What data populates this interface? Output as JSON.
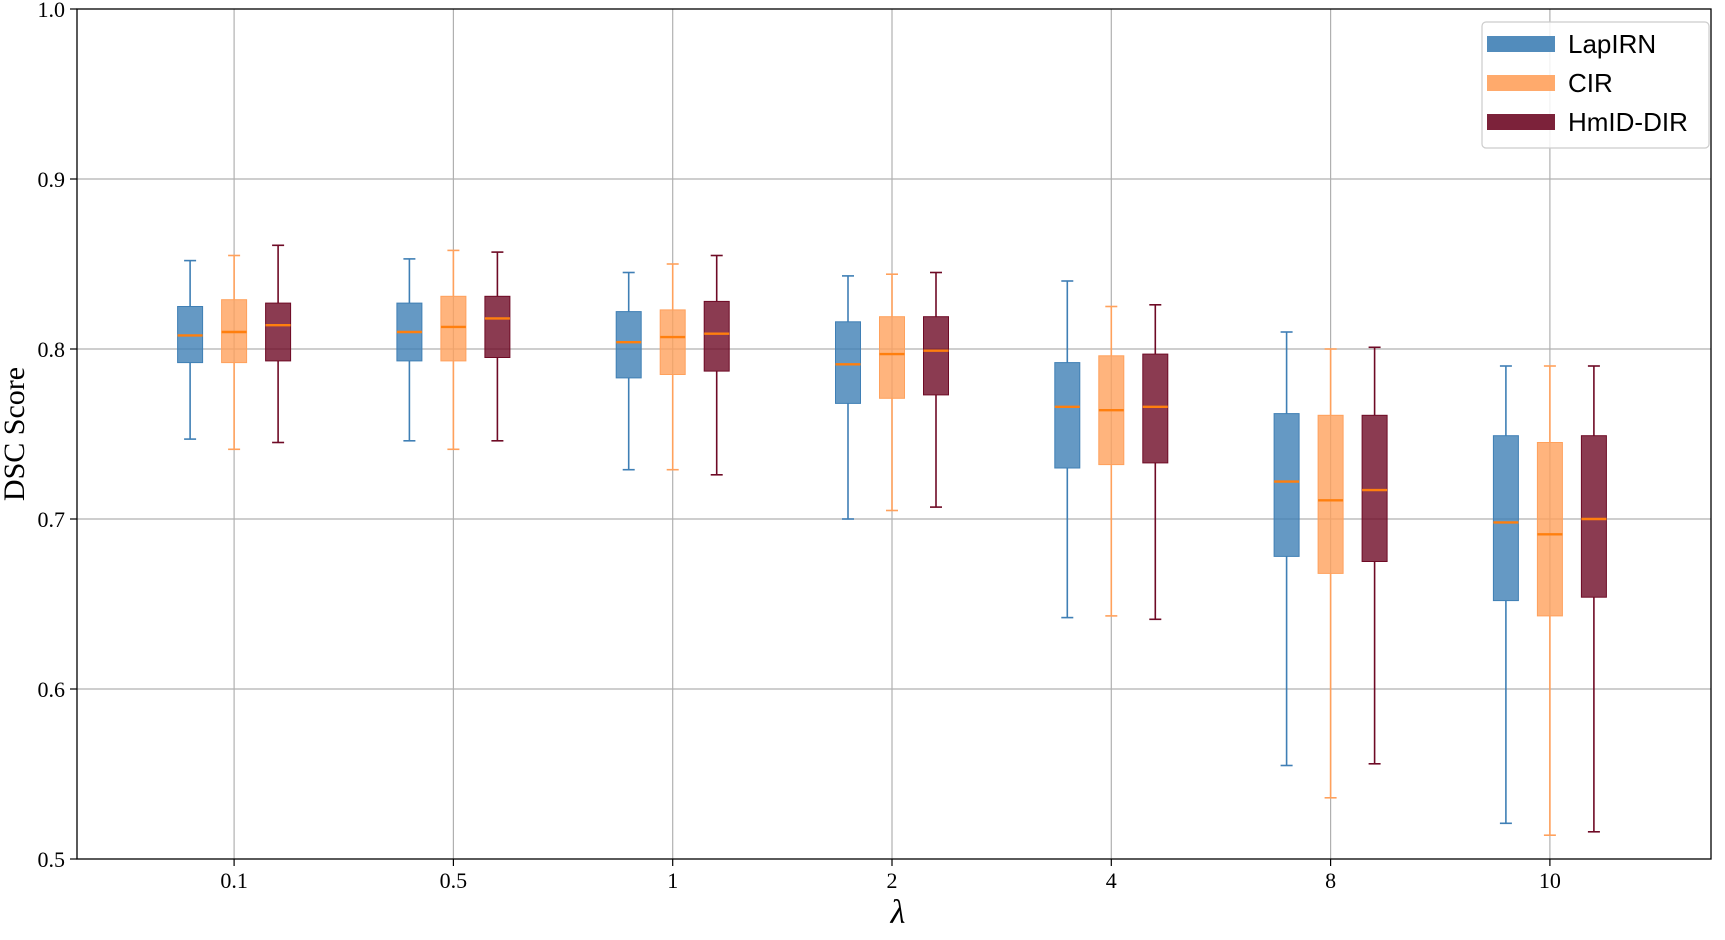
{
  "chart_data": {
    "type": "box",
    "title": "",
    "xlabel": "λ",
    "ylabel": "DSC Score",
    "ylim": [
      0.5,
      1.0
    ],
    "yticks": [
      0.5,
      0.6,
      0.7,
      0.8,
      0.9,
      1.0
    ],
    "ytick_labels": [
      "0.5",
      "0.6",
      "0.7",
      "0.8",
      "0.9",
      "1.0"
    ],
    "categories": [
      "0.1",
      "0.5",
      "1",
      "2",
      "4",
      "8",
      "10"
    ],
    "grid": true,
    "legend_position": "top-right",
    "median_color": "#ff7f0e",
    "series": [
      {
        "name": "LapIRN",
        "color": "#3f7fb5",
        "boxes": [
          {
            "whislo": 0.747,
            "q1": 0.792,
            "med": 0.808,
            "q3": 0.825,
            "whishi": 0.852
          },
          {
            "whislo": 0.746,
            "q1": 0.793,
            "med": 0.81,
            "q3": 0.827,
            "whishi": 0.853
          },
          {
            "whislo": 0.729,
            "q1": 0.783,
            "med": 0.804,
            "q3": 0.822,
            "whishi": 0.845
          },
          {
            "whislo": 0.7,
            "q1": 0.768,
            "med": 0.791,
            "q3": 0.816,
            "whishi": 0.843
          },
          {
            "whislo": 0.642,
            "q1": 0.73,
            "med": 0.766,
            "q3": 0.792,
            "whishi": 0.84
          },
          {
            "whislo": 0.555,
            "q1": 0.678,
            "med": 0.722,
            "q3": 0.762,
            "whishi": 0.81
          },
          {
            "whislo": 0.521,
            "q1": 0.652,
            "med": 0.698,
            "q3": 0.749,
            "whishi": 0.79
          }
        ]
      },
      {
        "name": "CIR",
        "color": "#ffa15c",
        "boxes": [
          {
            "whislo": 0.741,
            "q1": 0.792,
            "med": 0.81,
            "q3": 0.829,
            "whishi": 0.855
          },
          {
            "whislo": 0.741,
            "q1": 0.793,
            "med": 0.813,
            "q3": 0.831,
            "whishi": 0.858
          },
          {
            "whislo": 0.729,
            "q1": 0.785,
            "med": 0.807,
            "q3": 0.823,
            "whishi": 0.85
          },
          {
            "whislo": 0.705,
            "q1": 0.771,
            "med": 0.797,
            "q3": 0.819,
            "whishi": 0.844
          },
          {
            "whislo": 0.643,
            "q1": 0.732,
            "med": 0.764,
            "q3": 0.796,
            "whishi": 0.825
          },
          {
            "whislo": 0.536,
            "q1": 0.668,
            "med": 0.711,
            "q3": 0.761,
            "whishi": 0.8
          },
          {
            "whislo": 0.514,
            "q1": 0.643,
            "med": 0.691,
            "q3": 0.745,
            "whishi": 0.79
          }
        ]
      },
      {
        "name": "HmID-DIR",
        "color": "#6e0a25",
        "boxes": [
          {
            "whislo": 0.745,
            "q1": 0.793,
            "med": 0.814,
            "q3": 0.827,
            "whishi": 0.861
          },
          {
            "whislo": 0.746,
            "q1": 0.795,
            "med": 0.818,
            "q3": 0.831,
            "whishi": 0.857
          },
          {
            "whislo": 0.726,
            "q1": 0.787,
            "med": 0.809,
            "q3": 0.828,
            "whishi": 0.855
          },
          {
            "whislo": 0.707,
            "q1": 0.773,
            "med": 0.799,
            "q3": 0.819,
            "whishi": 0.845
          },
          {
            "whislo": 0.641,
            "q1": 0.733,
            "med": 0.766,
            "q3": 0.797,
            "whishi": 0.826
          },
          {
            "whislo": 0.556,
            "q1": 0.675,
            "med": 0.717,
            "q3": 0.761,
            "whishi": 0.801
          },
          {
            "whislo": 0.516,
            "q1": 0.654,
            "med": 0.7,
            "q3": 0.749,
            "whishi": 0.79
          }
        ]
      }
    ]
  }
}
